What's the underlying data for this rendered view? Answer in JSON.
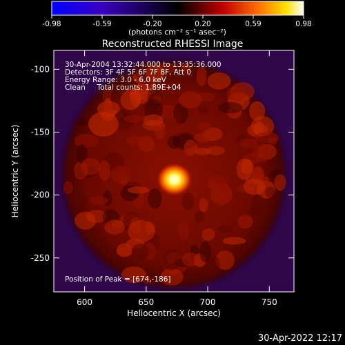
{
  "colorbar": {
    "ticks": [
      "-0.98",
      "-0.59",
      "-0.20",
      "0.20",
      "0.59",
      "0.98"
    ],
    "unit_label": "(photons cm⁻² s⁻¹ asec⁻²)",
    "range": [
      -0.98,
      0.98
    ]
  },
  "chart_data": {
    "type": "heatmap",
    "title": "Reconstructed RHESSI Image",
    "xlabel": "Heliocentric X (arcsec)",
    "ylabel": "Heliocentric Y (arcsec)",
    "xlim": [
      575,
      770
    ],
    "ylim": [
      -277,
      -85
    ],
    "xticks": [
      600,
      650,
      700,
      750
    ],
    "yticks": [
      -100,
      -150,
      -200,
      -250
    ],
    "peak": {
      "x": 674,
      "y": -186,
      "value": 0.98
    },
    "colormap": [
      "#0000ff",
      "#3a00c0",
      "#000000",
      "#c00000",
      "#ff8000",
      "#ffff00",
      "#ffffff"
    ]
  },
  "annotations": {
    "time": "30-Apr-2004 13:32:44.000 to 13:35:36.000",
    "detectors": "Detectors: 3F 4F 5F 6F 7F 8F, Att 0",
    "energy": "Energy Range: 3.0 - 6.0 keV",
    "clean": "Clean     Total counts: 1.89E+04",
    "peak_text": "Position of Peak = [674,-186]"
  },
  "footer": {
    "timestamp": "30-Apr-2022 12:17"
  }
}
